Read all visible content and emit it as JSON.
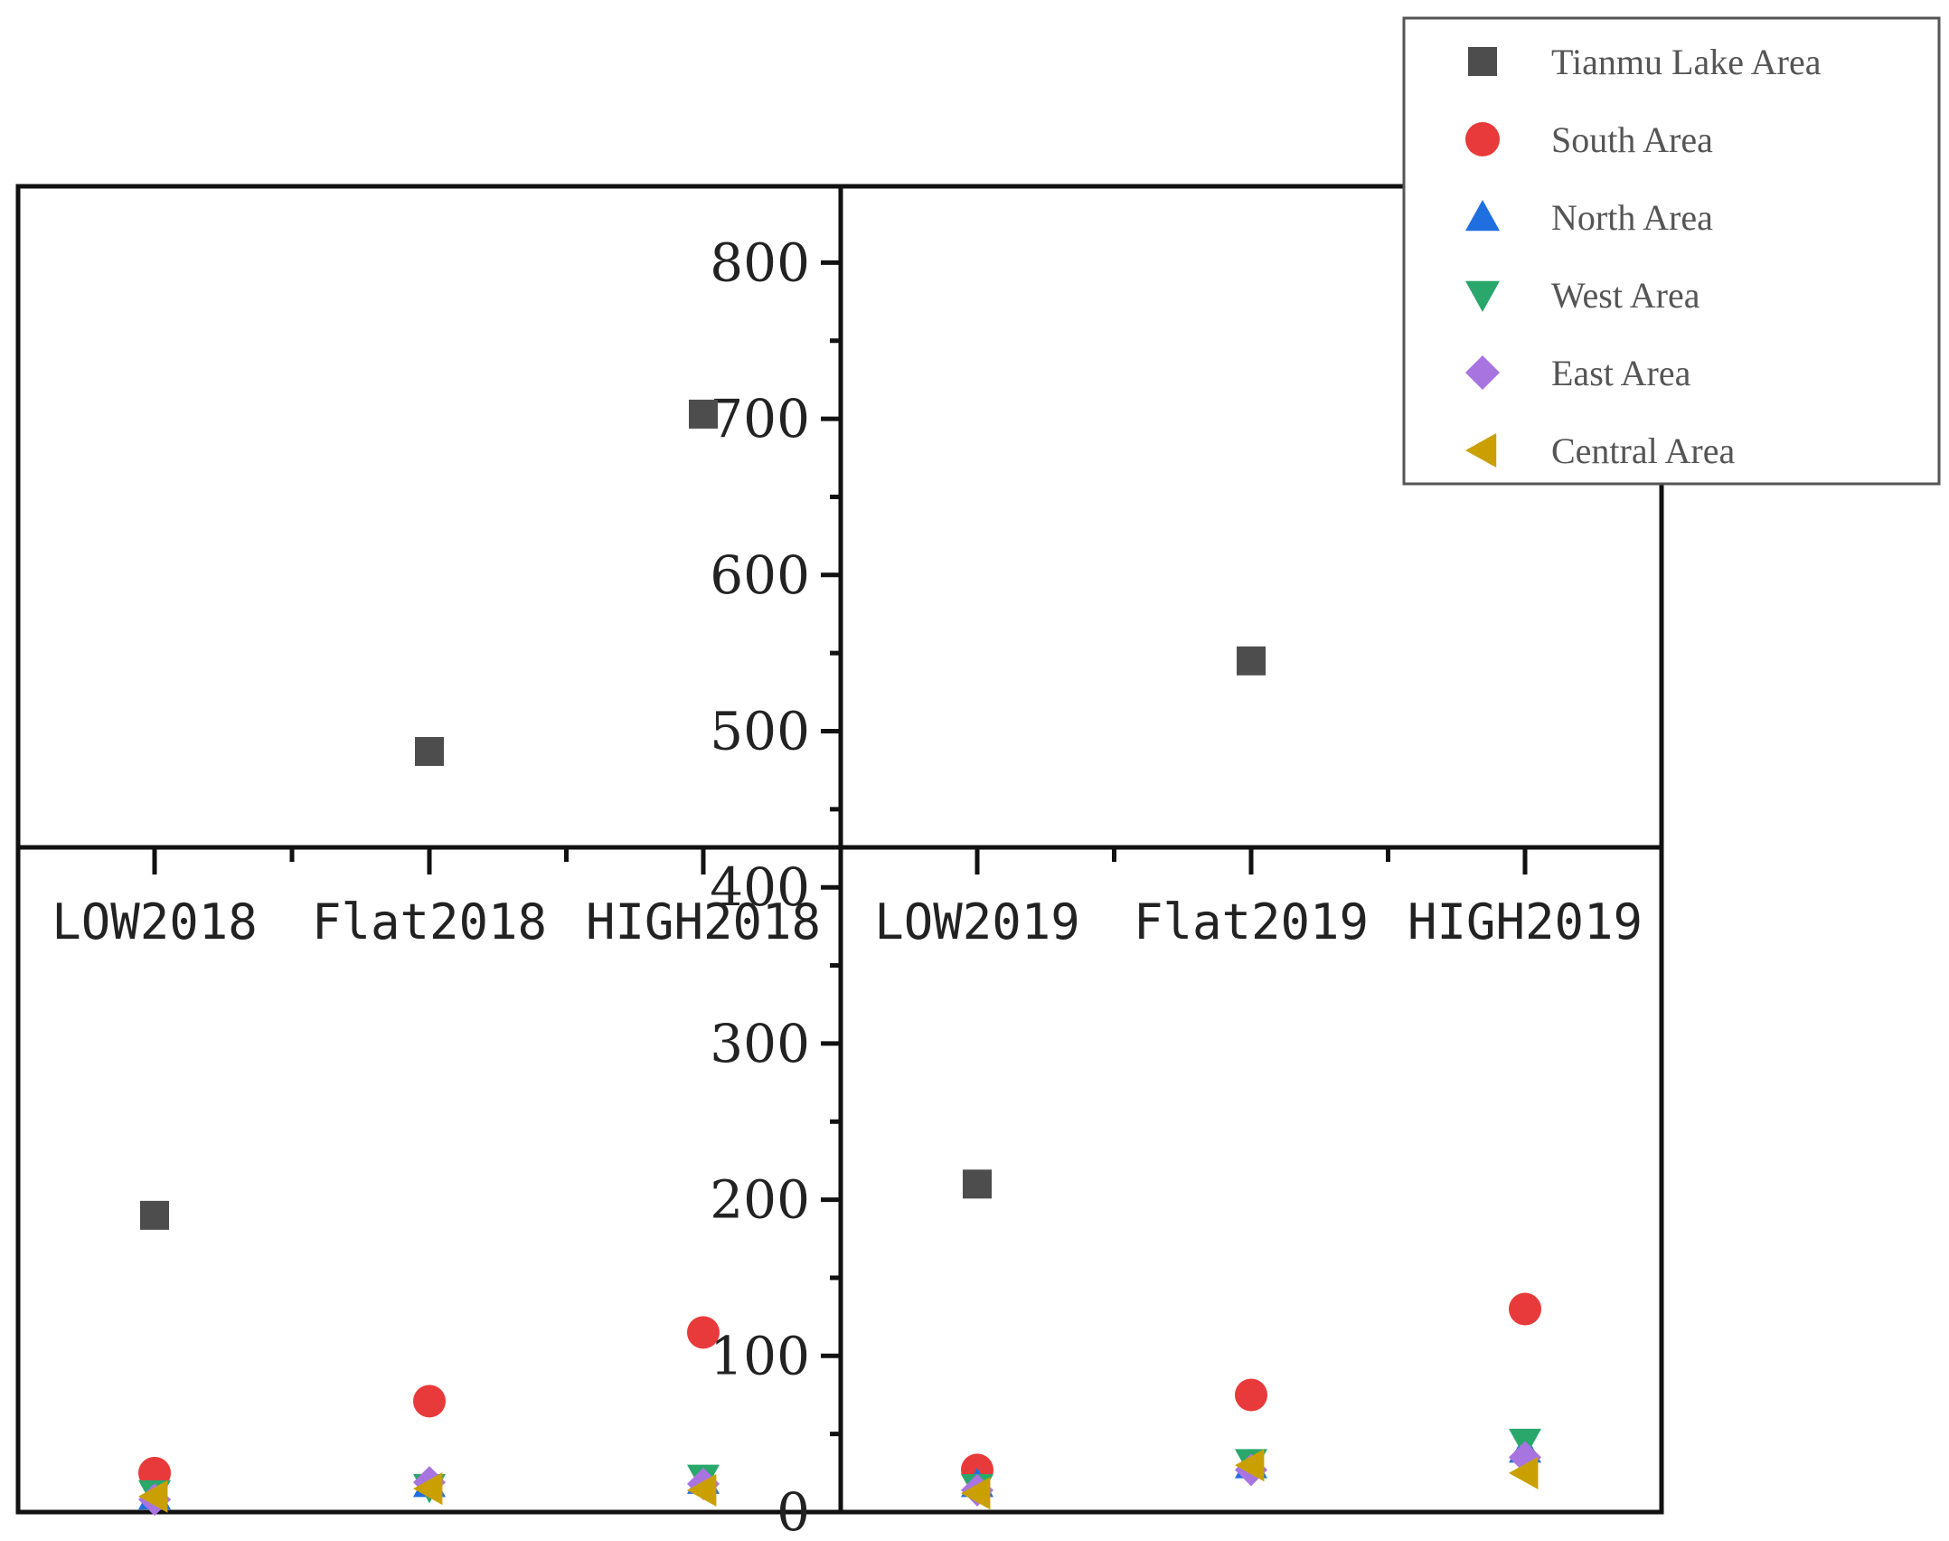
{
  "chart_data": {
    "type": "scatter",
    "categories": [
      "LOW2018",
      "Flat2018",
      "HIGH2018",
      "LOW2019",
      "Flat2019",
      "HIGH2019"
    ],
    "y_ticks": [
      0,
      100,
      200,
      300,
      400,
      500,
      600,
      700,
      800
    ],
    "ylim": [
      0,
      850
    ],
    "grid": false,
    "legend_position": "top-right",
    "series": [
      {
        "name": "Tianmu Lake Area",
        "marker": "square",
        "color": "#4d4d4d",
        "values": [
          190,
          487,
          703,
          210,
          545,
          null
        ]
      },
      {
        "name": "South Area",
        "marker": "circle",
        "color": "#e83a3a",
        "values": [
          25,
          71,
          115,
          27,
          75,
          130
        ]
      },
      {
        "name": "North Area",
        "marker": "triangle-up",
        "color": "#1f6fe0",
        "values": [
          10,
          18,
          20,
          18,
          30,
          40
        ]
      },
      {
        "name": "West Area",
        "marker": "triangle-down",
        "color": "#2aa76b",
        "values": [
          12,
          16,
          22,
          16,
          32,
          45
        ]
      },
      {
        "name": "East Area",
        "marker": "diamond",
        "color": "#a874e0",
        "values": [
          8,
          19,
          18,
          14,
          27,
          35
        ]
      },
      {
        "name": "Central Area",
        "marker": "triangle-left",
        "color": "#c9a000",
        "values": [
          10,
          15,
          14,
          12,
          30,
          25
        ]
      }
    ]
  }
}
